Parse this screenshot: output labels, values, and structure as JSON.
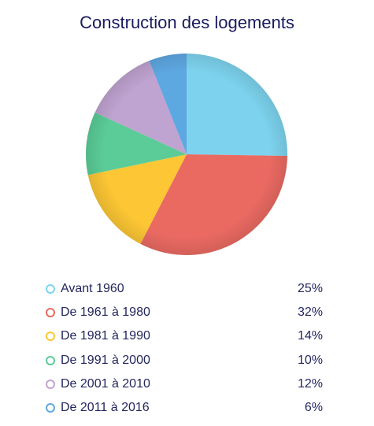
{
  "chart_data": {
    "type": "pie",
    "title": "Construction des logements",
    "slices": [
      {
        "label": "Avant 1960",
        "value": 25,
        "display": "25%",
        "color": "#7dd3ee"
      },
      {
        "label": "De 1961 à 1980",
        "value": 32,
        "display": "32%",
        "color": "#ea6a62"
      },
      {
        "label": "De 1981 à 1990",
        "value": 14,
        "display": "14%",
        "color": "#fcc634"
      },
      {
        "label": "De 1991 à 2000",
        "value": 10,
        "display": "10%",
        "color": "#5bcc97"
      },
      {
        "label": "De 2001 à 2010",
        "value": 12,
        "display": "12%",
        "color": "#bfa3d0"
      },
      {
        "label": "De 2011 à 2016",
        "value": 6,
        "display": "6%",
        "color": "#5ea8e2"
      }
    ],
    "legend_position": "bottom"
  }
}
